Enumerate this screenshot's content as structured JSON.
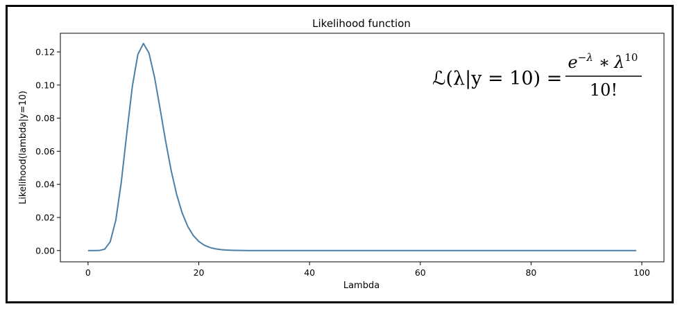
{
  "chart_data": {
    "type": "line",
    "title": "Likelihood function",
    "xlabel": "Lambda",
    "ylabel": "Likelihood(lambda|y=10)",
    "xlim": [
      -5,
      104
    ],
    "ylim": [
      -0.0068,
      0.1313
    ],
    "x_ticks": [
      0,
      20,
      40,
      60,
      80,
      100
    ],
    "x_tick_labels": [
      "0",
      "20",
      "40",
      "60",
      "80",
      "100"
    ],
    "y_ticks": [
      0.0,
      0.02,
      0.04,
      0.06,
      0.08,
      0.1,
      0.12
    ],
    "y_tick_labels": [
      "0.00",
      "0.02",
      "0.04",
      "0.06",
      "0.08",
      "0.10",
      "0.12"
    ],
    "grid": false,
    "series": [
      {
        "color": "#4a7fa8",
        "x": [
          0,
          1,
          2,
          3,
          4,
          5,
          6,
          7,
          8,
          9,
          10,
          11,
          12,
          13,
          14,
          15,
          16,
          17,
          18,
          19,
          20,
          21,
          22,
          23,
          24,
          25,
          26,
          27,
          28,
          29,
          30,
          31,
          32,
          33,
          34,
          35,
          36,
          37,
          38,
          39,
          40,
          41,
          42,
          43,
          44,
          45,
          46,
          47,
          48,
          49,
          50,
          51,
          52,
          53,
          54,
          55,
          56,
          57,
          58,
          59,
          60,
          61,
          62,
          63,
          64,
          65,
          66,
          67,
          68,
          69,
          70,
          71,
          72,
          73,
          74,
          75,
          76,
          77,
          78,
          79,
          80,
          81,
          82,
          83,
          84,
          85,
          86,
          87,
          88,
          89,
          90,
          91,
          92,
          93,
          94,
          95,
          96,
          97,
          98,
          99
        ],
        "y": [
          0,
          1e-07,
          2.82e-05,
          0.0008101,
          0.0052925,
          0.0181328,
          0.041302,
          0.0709833,
          0.0992615,
          0.1185801,
          0.12511,
          0.119378,
          0.1048373,
          0.0858736,
          0.0662487,
          0.0484959,
          0.0338711,
          0.0226832,
          0.0146275,
          0.0091162,
          0.0055089,
          0.003237,
          0.0018545,
          0.0010384,
          0.0005694,
          0.0003063,
          0.0001619,
          8.42e-05,
          4.31e-05,
          2.18e-05,
          1.08e-05,
          5.3e-06,
          2.6e-06,
          1.2e-06,
          6e-07,
          3e-07,
          1e-07,
          1e-07,
          0,
          0,
          0,
          0,
          0,
          0,
          0,
          0,
          0,
          0,
          0,
          0,
          0,
          0,
          0,
          0,
          0,
          0,
          0,
          0,
          0,
          0,
          0,
          0,
          0,
          0,
          0,
          0,
          0,
          0,
          0,
          0,
          0,
          0,
          0,
          0,
          0,
          0,
          0,
          0,
          0,
          0,
          0,
          0,
          0,
          0,
          0,
          0,
          0,
          0,
          0,
          0,
          0,
          0,
          0,
          0,
          0,
          0,
          0,
          0,
          0,
          0
        ]
      }
    ],
    "annotation": {
      "lhs": "ℒ(λ|y = 10) =",
      "numerator_base": "e",
      "numerator_base_exp": "−λ",
      "numerator_op": "∗",
      "numerator_var": "λ",
      "numerator_var_exp": "10",
      "denominator": "10!"
    }
  }
}
